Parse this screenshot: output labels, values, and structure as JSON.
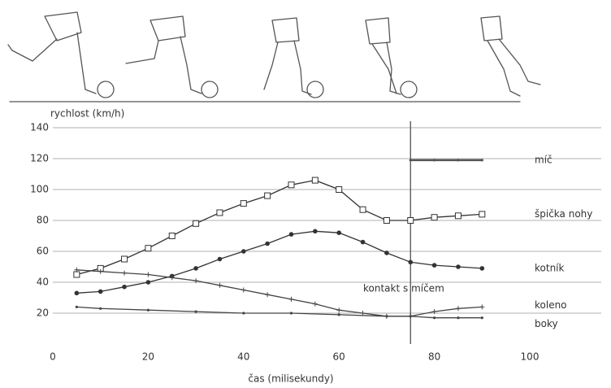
{
  "chart_data": {
    "type": "line",
    "y_label": "rychlost (km/h)",
    "x_label": "čas (milisekundy)",
    "annotation": "kontakt s míčem",
    "event_x": 75,
    "xlim": [
      0,
      100
    ],
    "ylim": [
      0,
      140
    ],
    "xticks": [
      0,
      20,
      40,
      60,
      80,
      100
    ],
    "yticks": [
      20,
      40,
      60,
      80,
      100,
      120,
      140
    ],
    "grid": true,
    "series": [
      {
        "name": "míč",
        "color": "#555555",
        "marker": "dot",
        "x": [
          75,
          80,
          85,
          90
        ],
        "values": [
          119,
          119,
          119,
          119
        ]
      },
      {
        "name": "špička nohy",
        "color": "#333333",
        "marker": "square",
        "x": [
          5,
          10,
          15,
          20,
          25,
          30,
          35,
          40,
          45,
          50,
          55,
          60,
          65,
          70,
          75,
          80,
          85,
          90
        ],
        "values": [
          45,
          49,
          55,
          62,
          70,
          78,
          85,
          91,
          96,
          103,
          106,
          100,
          87,
          80,
          80,
          82,
          83,
          84
        ]
      },
      {
        "name": "kotník",
        "color": "#333333",
        "marker": "disc",
        "x": [
          5,
          10,
          15,
          20,
          25,
          30,
          35,
          40,
          45,
          50,
          55,
          60,
          65,
          70,
          75,
          80,
          85,
          90
        ],
        "values": [
          33,
          34,
          37,
          40,
          44,
          49,
          55,
          60,
          65,
          71,
          73,
          72,
          66,
          59,
          53,
          51,
          50,
          49
        ]
      },
      {
        "name": "koleno",
        "color": "#444444",
        "marker": "plus",
        "x": [
          5,
          10,
          15,
          20,
          25,
          30,
          35,
          40,
          45,
          50,
          55,
          60,
          65,
          70,
          75,
          80,
          85,
          90
        ],
        "values": [
          48,
          47,
          46,
          45,
          43,
          41,
          38,
          35,
          32,
          29,
          26,
          22,
          20,
          18,
          18,
          21,
          23,
          24
        ]
      },
      {
        "name": "boky",
        "color": "#444444",
        "marker": "dot",
        "x": [
          5,
          10,
          20,
          30,
          40,
          50,
          60,
          70,
          75,
          80,
          85,
          90
        ],
        "values": [
          24,
          23,
          22,
          21,
          20,
          20,
          19,
          18,
          18,
          17,
          17,
          17
        ]
      }
    ]
  }
}
